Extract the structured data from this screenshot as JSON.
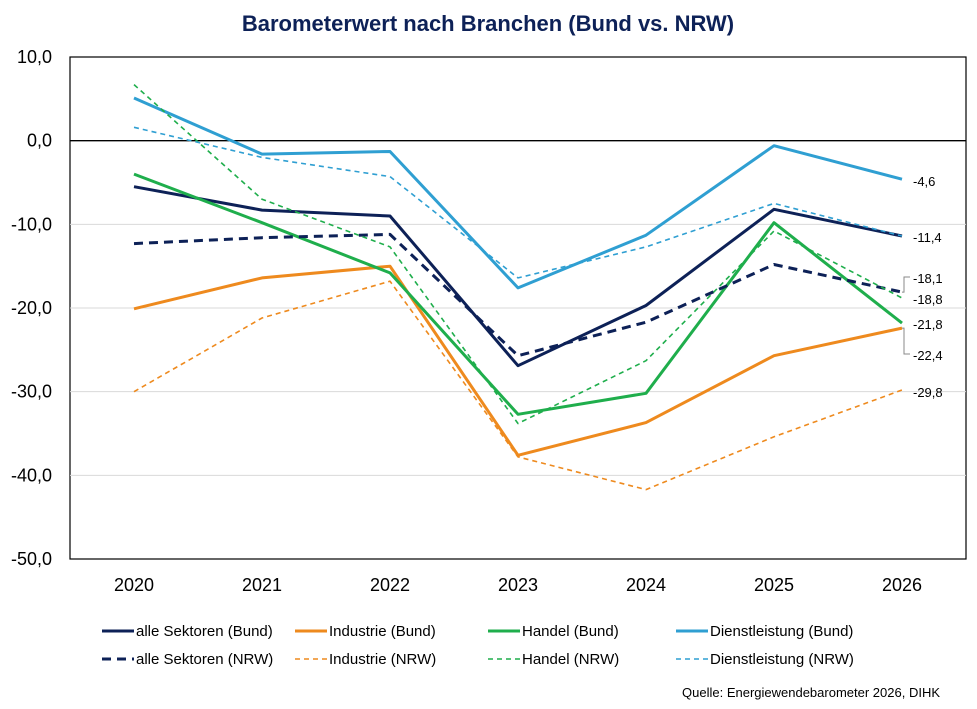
{
  "chart_data": {
    "type": "line",
    "title": "Barometerwert nach Branchen (Bund vs. NRW)",
    "x": [
      "2020",
      "2021",
      "2022",
      "2023",
      "2024",
      "2025",
      "2026"
    ],
    "ylim": [
      -50,
      10
    ],
    "yticks": [
      "10,0",
      "0,0",
      "-10,0",
      "-20,0",
      "-30,0",
      "-40,0",
      "-50,0"
    ],
    "grid": true,
    "legend_position": "bottom",
    "series": [
      {
        "name": "alle Sektoren (Bund)",
        "color": "#0d2157",
        "style": "solid",
        "values": [
          -5.5,
          -8.3,
          -9.0,
          -26.9,
          -19.7,
          -8.2,
          -11.4
        ]
      },
      {
        "name": "Industrie (Bund)",
        "color": "#ee8a1e",
        "style": "solid",
        "values": [
          -20.1,
          -16.4,
          -15.0,
          -37.6,
          -33.7,
          -25.7,
          -22.4
        ]
      },
      {
        "name": "Handel (Bund)",
        "color": "#1fae4c",
        "style": "solid",
        "values": [
          -4.0,
          -9.8,
          -15.8,
          -32.7,
          -30.2,
          -9.8,
          -21.8
        ]
      },
      {
        "name": "Dienstleistung (Bund)",
        "color": "#2f9fd2",
        "style": "solid",
        "values": [
          5.1,
          -1.6,
          -1.3,
          -17.6,
          -11.3,
          -0.6,
          -4.6
        ]
      },
      {
        "name": "alle Sektoren (NRW)",
        "color": "#0d2157",
        "style": "dashed-bold",
        "values": [
          -12.3,
          -11.6,
          -11.2,
          -25.7,
          -21.7,
          -14.8,
          -18.1
        ]
      },
      {
        "name": "Industrie (NRW)",
        "color": "#ee8a1e",
        "style": "dashed",
        "values": [
          -30.0,
          -21.2,
          -16.8,
          -37.8,
          -41.7,
          -35.4,
          -29.8
        ]
      },
      {
        "name": "Handel (NRW)",
        "color": "#1fae4c",
        "style": "dashed",
        "values": [
          6.7,
          -7.0,
          -12.7,
          -33.8,
          -26.3,
          -10.8,
          -18.8
        ]
      },
      {
        "name": "Dienstleistung (NRW)",
        "color": "#2f9fd2",
        "style": "dashed",
        "values": [
          1.6,
          -2.0,
          -4.3,
          -16.4,
          -12.7,
          -7.5,
          -11.4
        ]
      }
    ],
    "data_labels": [
      {
        "text": "-4,6",
        "value": -4.6
      },
      {
        "text": "-11,4",
        "value": -11.4
      },
      {
        "text": "-18,1",
        "value": -18.1
      },
      {
        "text": "-18,8",
        "value": -18.8
      },
      {
        "text": "-21,8",
        "value": -21.8
      },
      {
        "text": "-22,4",
        "value": -22.4
      },
      {
        "text": "-29,8",
        "value": -29.8
      }
    ],
    "source": "Quelle: Energiewendebarometer 2026, DIHK"
  }
}
